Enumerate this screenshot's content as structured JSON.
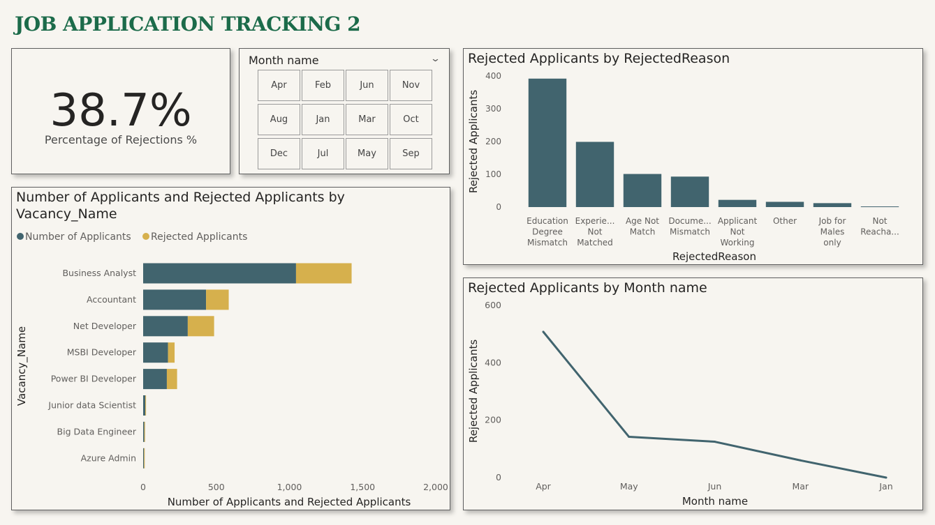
{
  "page_title": "JOB APPLICATION TRACKING 2",
  "kpi": {
    "value": "38.7%",
    "label": "Percentage of Rejections %"
  },
  "slicer": {
    "title": "Month name",
    "options": [
      "Apr",
      "Feb",
      "Jun",
      "Nov",
      "Aug",
      "Jan",
      "Mar",
      "Oct",
      "Dec",
      "Jul",
      "May",
      "Sep"
    ]
  },
  "colors": {
    "primary": "#41646e",
    "secondary": "#d6b04d",
    "title": "#1c6b4a"
  },
  "chart_data": [
    {
      "id": "rejected-by-reason",
      "type": "bar",
      "title": "Rejected Applicants by RejectedReason",
      "xlabel": "RejectedReason",
      "ylabel": "Rejected Applicants",
      "ylim": [
        0,
        400
      ],
      "yticks": [
        "0",
        "100",
        "200",
        "300",
        "400"
      ],
      "categories": [
        [
          "Education",
          "Degree",
          "Mismatch"
        ],
        [
          "Experie...",
          "Not",
          "Matched"
        ],
        [
          "Age Not",
          "Match"
        ],
        [
          "Docume...",
          "Mismatch"
        ],
        [
          "Applicant",
          "Not",
          "Working"
        ],
        [
          "Other"
        ],
        [
          "Job for",
          "Males",
          "only"
        ],
        [
          "Not",
          "Reacha..."
        ]
      ],
      "values": [
        392,
        199,
        101,
        93,
        22,
        16,
        12,
        2
      ]
    },
    {
      "id": "applicants-by-vacancy",
      "type": "bar",
      "orientation": "horizontal",
      "stacked": true,
      "title": "Number of Applicants and Rejected Applicants by Vacancy_Name",
      "title_lines": [
        "Number of Applicants and Rejected Applicants by",
        "Vacancy_Name"
      ],
      "xlabel": "Number of Applicants and Rejected Applicants",
      "ylabel": "Vacancy_Name",
      "xlim": [
        0,
        2000
      ],
      "xticks": [
        "0",
        "500",
        "1,000",
        "1,500",
        "2,000"
      ],
      "legend": [
        "Number of Applicants",
        "Rejected Applicants"
      ],
      "legend_position": "top-left",
      "categories": [
        "Business Analyst",
        "Accountant",
        "Net Developer",
        "MSBI Developer",
        "Power BI Developer",
        "Junior data Scientist",
        "Big Data Engineer",
        "Azure Admin"
      ],
      "series": [
        {
          "name": "Number of Applicants",
          "values": [
            1045,
            430,
            305,
            170,
            162,
            15,
            8,
            6
          ]
        },
        {
          "name": "Rejected Applicants",
          "values": [
            380,
            155,
            180,
            45,
            70,
            3,
            5,
            3
          ]
        }
      ]
    },
    {
      "id": "rejected-by-month",
      "type": "line",
      "title": "Rejected Applicants by Month name",
      "xlabel": "Month name",
      "ylabel": "Rejected Applicants",
      "ylim": [
        0,
        600
      ],
      "yticks": [
        "0",
        "200",
        "400",
        "600"
      ],
      "categories": [
        "Apr",
        "May",
        "Jun",
        "Mar",
        "Jan"
      ],
      "values": [
        508,
        142,
        125,
        60,
        0
      ]
    }
  ]
}
